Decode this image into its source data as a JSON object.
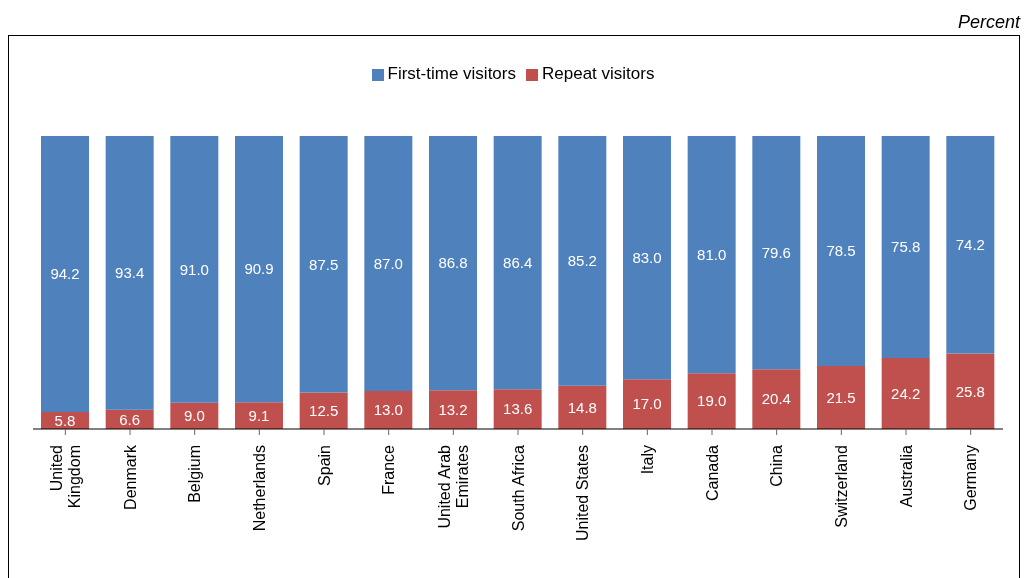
{
  "chart_data": {
    "type": "bar",
    "stacked": true,
    "annotations": [
      "Percent"
    ],
    "legend": "top",
    "categories": [
      "United Kingdom",
      "Denmark",
      "Belgium",
      "Netherlands",
      "Spain",
      "France",
      "United Arab Emirates",
      "South Africa",
      "United States",
      "Italy",
      "Canada",
      "China",
      "Switzerland",
      "Australia",
      "Germany"
    ],
    "series": [
      {
        "name": "Repeat visitors",
        "color": "#c0504d",
        "values": [
          5.8,
          6.6,
          9.0,
          9.1,
          12.5,
          13.0,
          13.2,
          13.6,
          14.8,
          17.0,
          19.0,
          20.4,
          21.5,
          24.2,
          25.8
        ],
        "value_labels": [
          "5.8",
          "6.6",
          "9.0",
          "9.1",
          "12.5",
          "13.0",
          "13.2",
          "13.6",
          "14.8",
          "17.0",
          "19.0",
          "20.4",
          "21.5",
          "24.2",
          "25.8"
        ]
      },
      {
        "name": "First-time visitors",
        "color": "#4f81bd",
        "values": [
          94.2,
          93.4,
          91.0,
          90.9,
          87.5,
          87.0,
          86.8,
          86.4,
          85.2,
          83.0,
          81.0,
          79.6,
          78.5,
          75.8,
          74.2
        ],
        "value_labels": [
          "94.2",
          "93.4",
          "91.0",
          "90.9",
          "87.5",
          "87.0",
          "86.8",
          "86.4",
          "85.2",
          "83.0",
          "81.0",
          "79.6",
          "78.5",
          "75.8",
          "74.2"
        ]
      }
    ]
  }
}
